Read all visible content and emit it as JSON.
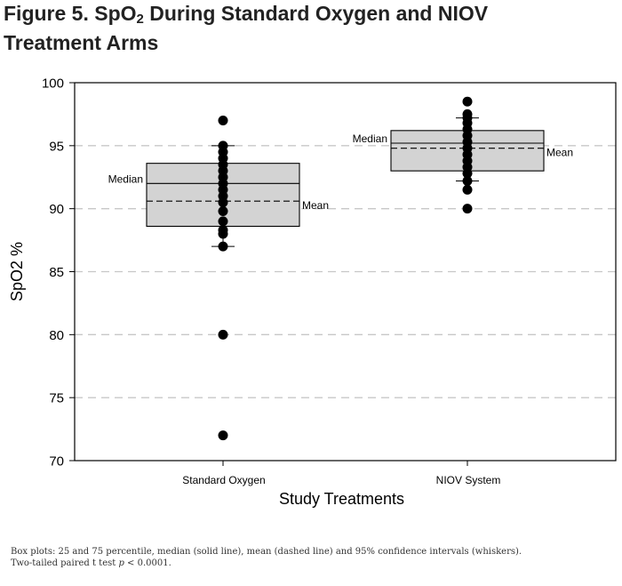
{
  "title": {
    "line1_pre": "Figure 5. SpO",
    "line1_sub": "2",
    "line1_post": " During Standard Oxygen and NIOV",
    "line2": "Treatment Arms"
  },
  "footnote": {
    "line1": "Box plots: 25 and 75 percentile, median (solid line), mean (dashed line) and 95% confidence intervals (whiskers).",
    "line2_pre": "Two-tailed paired t test ",
    "line2_p": "p",
    "line2_post": " < 0.0001."
  },
  "colors": {
    "box_fill": "#d3d3d3",
    "grid": "#c8c8c8",
    "points": "#000000"
  },
  "chart_data": {
    "type": "box",
    "xlabel": "Study Treatments",
    "ylabel": "SpO2 %",
    "ylim": [
      70,
      100
    ],
    "yticks": [
      70,
      75,
      80,
      85,
      90,
      95,
      100
    ],
    "grid": "horizontal dashed",
    "categories": [
      "Standard Oxygen",
      "NIOV System"
    ],
    "boxes": [
      {
        "name": "Standard Oxygen",
        "q1": 88.6,
        "median": 92.0,
        "q3": 93.6,
        "mean": 90.6,
        "whisker_low": 87.0,
        "whisker_high": 95.0,
        "points": [
          97,
          95,
          94.5,
          94.0,
          93.5,
          93.0,
          92.5,
          92.0,
          91.5,
          91.0,
          90.5,
          89.8,
          89.0,
          88.3,
          88.0,
          87.0,
          80,
          72
        ],
        "median_label": "Median",
        "mean_label": "Mean"
      },
      {
        "name": "NIOV System",
        "q1": 93.0,
        "median": 95.2,
        "q3": 96.2,
        "mean": 94.8,
        "whisker_low": 92.2,
        "whisker_high": 97.2,
        "points": [
          98.5,
          97.5,
          97.2,
          96.8,
          96.3,
          95.8,
          95.3,
          94.8,
          94.3,
          93.8,
          93.3,
          92.8,
          92.2,
          91.5,
          90.0
        ],
        "median_label": "Median",
        "mean_label": "Mean"
      }
    ]
  }
}
